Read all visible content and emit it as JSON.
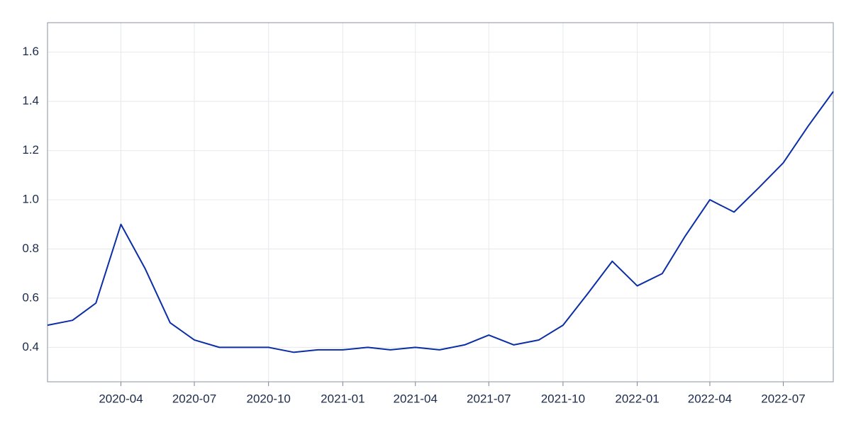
{
  "chart_data": {
    "type": "line",
    "x": [
      "2020-01",
      "2020-02",
      "2020-03",
      "2020-04",
      "2020-05",
      "2020-06",
      "2020-07",
      "2020-08",
      "2020-09",
      "2020-10",
      "2020-11",
      "2020-12",
      "2021-01",
      "2021-02",
      "2021-03",
      "2021-04",
      "2021-05",
      "2021-06",
      "2021-07",
      "2021-08",
      "2021-09",
      "2021-10",
      "2021-11",
      "2021-12",
      "2022-01",
      "2022-02",
      "2022-03",
      "2022-04",
      "2022-05",
      "2022-06",
      "2022-07",
      "2022-08",
      "2022-09"
    ],
    "values": [
      0.49,
      0.51,
      0.58,
      0.9,
      0.72,
      0.5,
      0.43,
      0.4,
      0.4,
      0.4,
      0.38,
      0.39,
      0.39,
      0.4,
      0.39,
      0.4,
      0.39,
      0.41,
      0.45,
      0.41,
      0.43,
      0.49,
      0.62,
      0.75,
      0.65,
      0.7,
      0.85,
      1.0,
      0.95,
      1.05,
      1.15,
      1.3,
      1.44
    ],
    "color": "#0b2ea6",
    "xlim": [
      "2020-01",
      "2022-09"
    ],
    "xticks": [
      "2020-04",
      "2020-07",
      "2020-10",
      "2021-01",
      "2021-04",
      "2021-07",
      "2021-10",
      "2022-01",
      "2022-04",
      "2022-07"
    ],
    "ylim": [
      0.26,
      1.72
    ],
    "yticks": [
      0.4,
      0.6,
      0.8,
      {
        "value": 1,
        "label": "1.0"
      },
      1.2,
      1.4,
      1.6
    ],
    "grid": true
  }
}
